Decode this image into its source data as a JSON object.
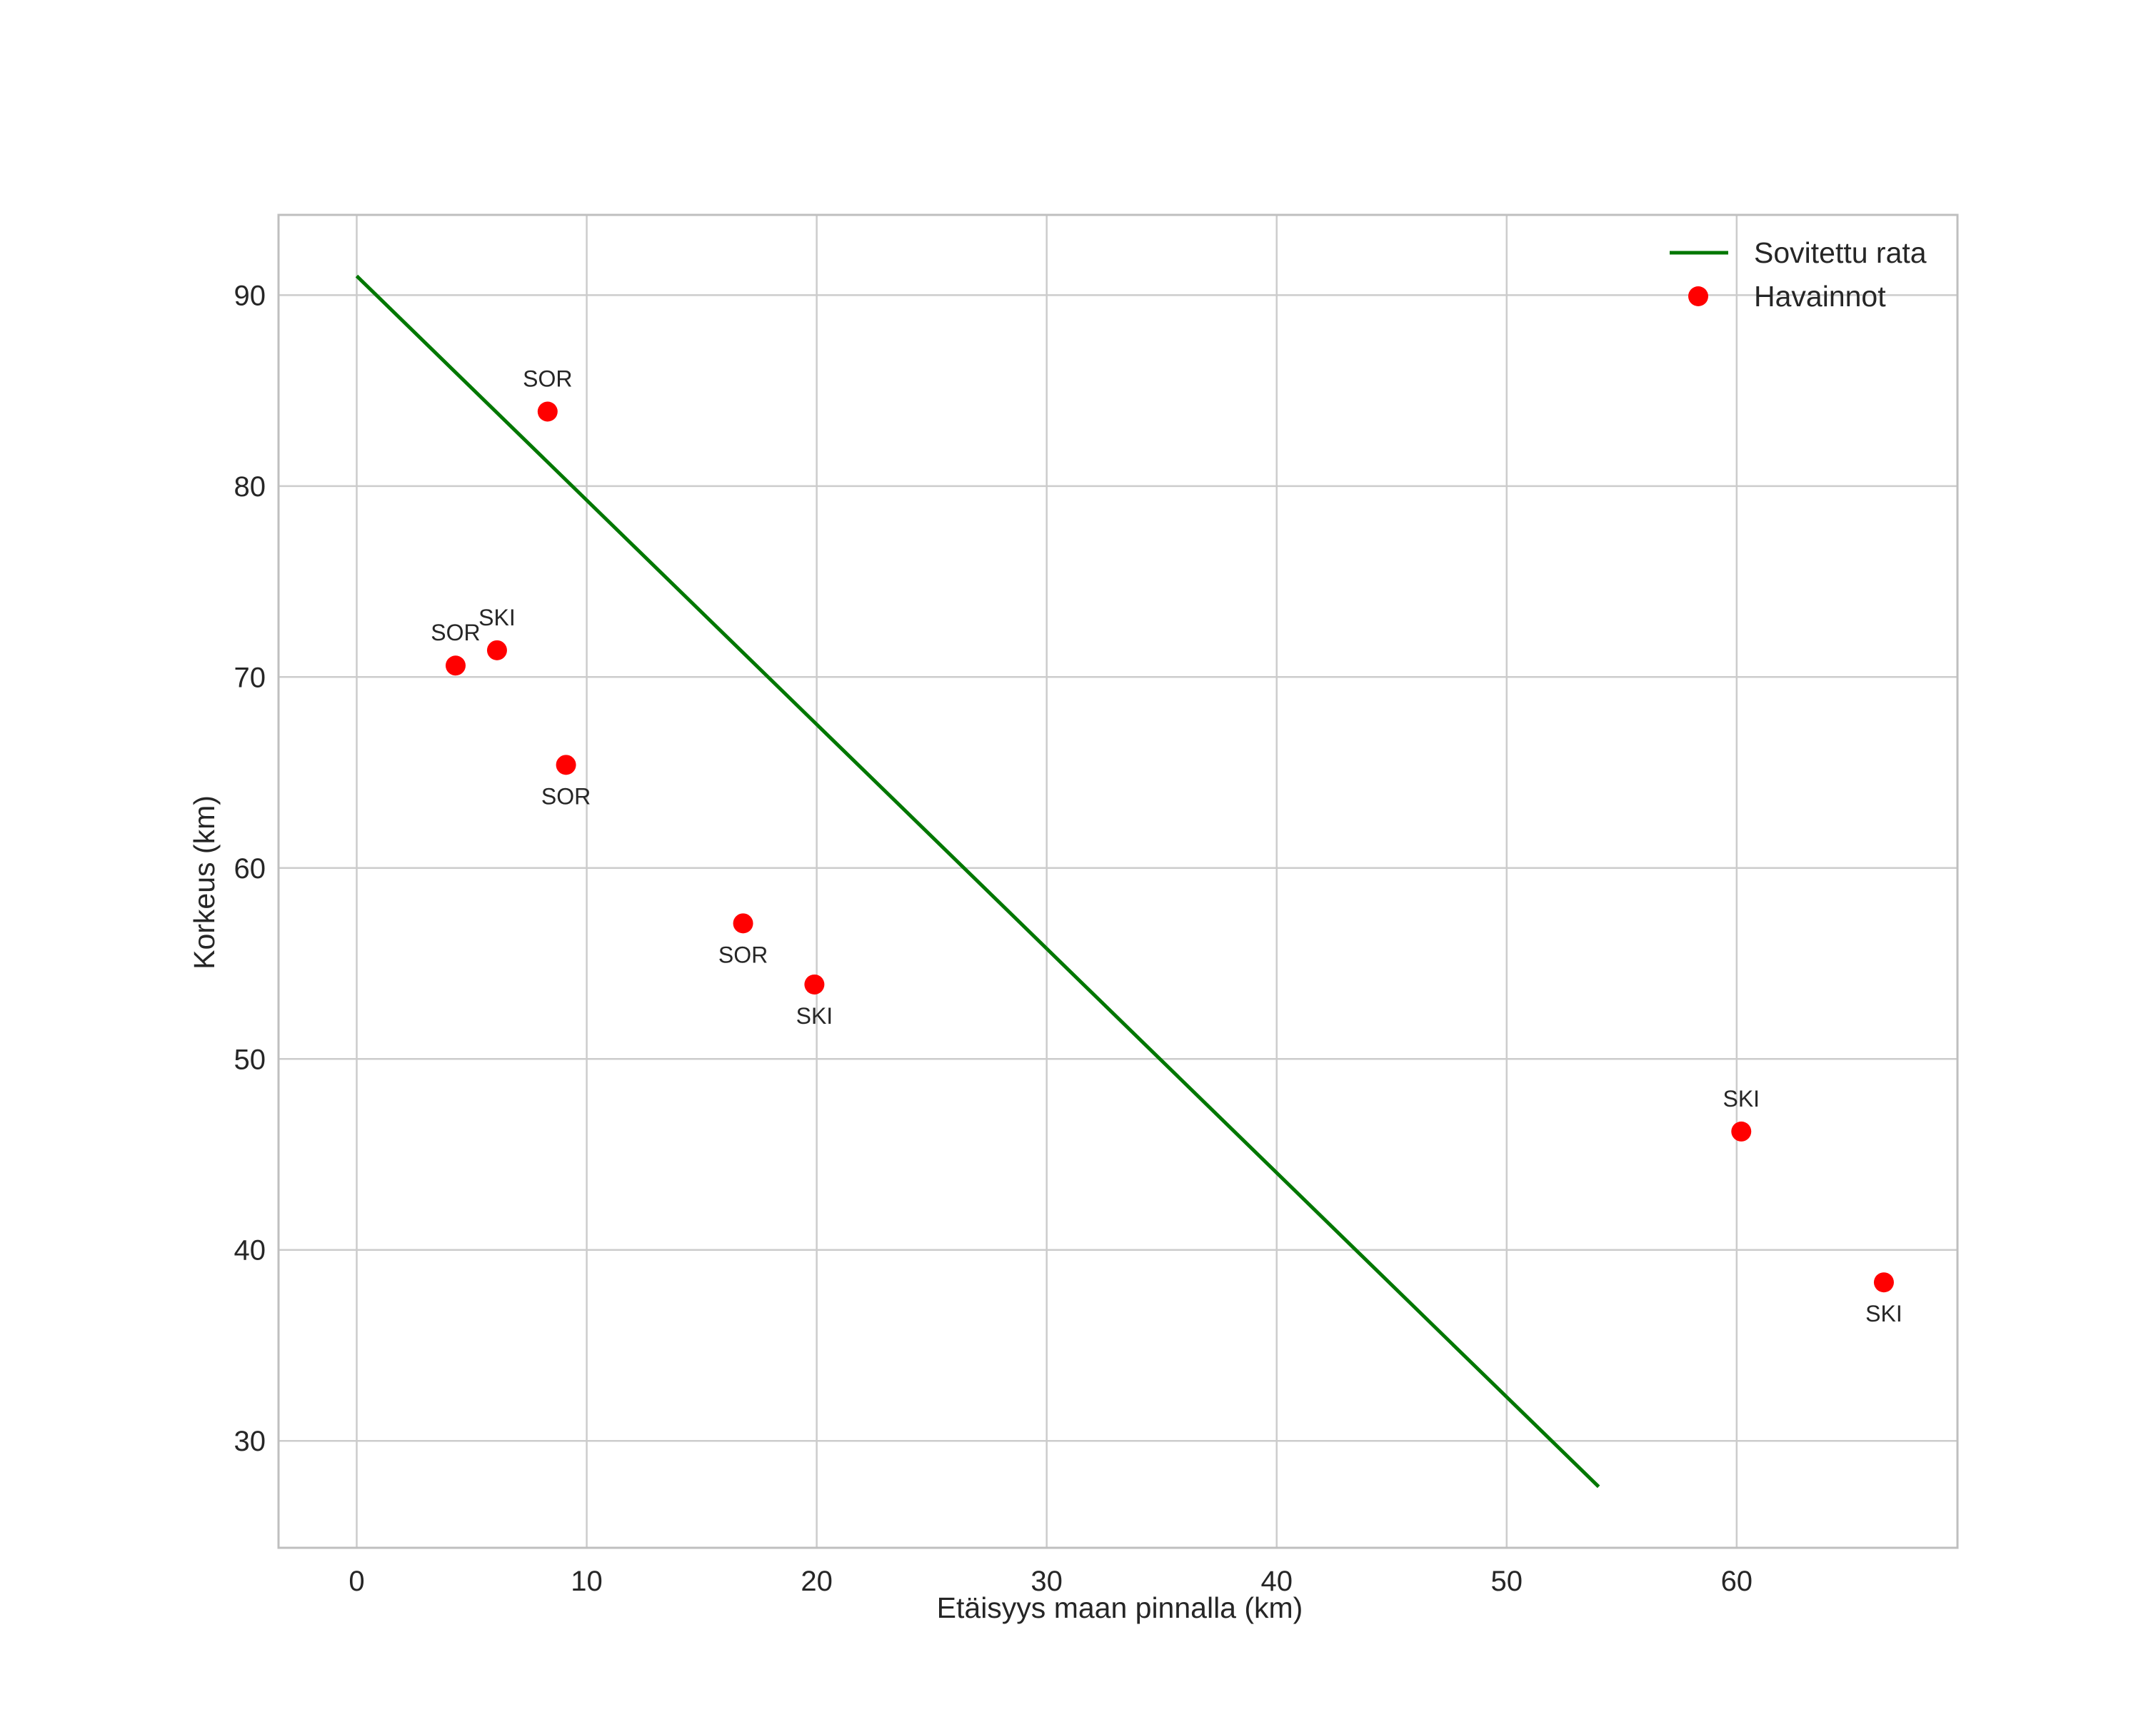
{
  "chart_data": {
    "type": "scatter",
    "title": "",
    "xlabel": "Etäisyys maan pinnalla (km)",
    "ylabel": "Korkeus (km)",
    "xlim": [
      -3.4,
      69.6
    ],
    "ylim": [
      24.4,
      94.2
    ],
    "xticks": [
      0,
      10,
      20,
      30,
      40,
      50,
      60
    ],
    "yticks": [
      30,
      40,
      50,
      60,
      70,
      80,
      90
    ],
    "grid": true,
    "legend_position": "top-right",
    "series": [
      {
        "name": "Sovitettu rata",
        "kind": "line",
        "color": "#007700",
        "points": [
          {
            "x": 0,
            "y": 91.0
          },
          {
            "x": 54.0,
            "y": 27.6
          }
        ]
      },
      {
        "name": "Havainnot",
        "kind": "scatter",
        "color": "#ff0000",
        "points": [
          {
            "x": 8.3,
            "y": 83.9,
            "label": "SOR",
            "label_pos": "above"
          },
          {
            "x": 4.3,
            "y": 70.6,
            "label": "SOR",
            "label_pos": "above"
          },
          {
            "x": 6.1,
            "y": 71.4,
            "label": "SKI",
            "label_pos": "above"
          },
          {
            "x": 9.1,
            "y": 65.4,
            "label": "SOR",
            "label_pos": "below"
          },
          {
            "x": 16.8,
            "y": 57.1,
            "label": "SOR",
            "label_pos": "below"
          },
          {
            "x": 19.9,
            "y": 53.9,
            "label": "SKI",
            "label_pos": "below"
          },
          {
            "x": 60.2,
            "y": 46.2,
            "label": "SKI",
            "label_pos": "above"
          },
          {
            "x": 66.4,
            "y": 38.3,
            "label": "SKI",
            "label_pos": "below"
          }
        ]
      }
    ]
  },
  "colors": {
    "grid": "#cccccc",
    "frame": "#bfbfbf",
    "text": "#262626"
  }
}
